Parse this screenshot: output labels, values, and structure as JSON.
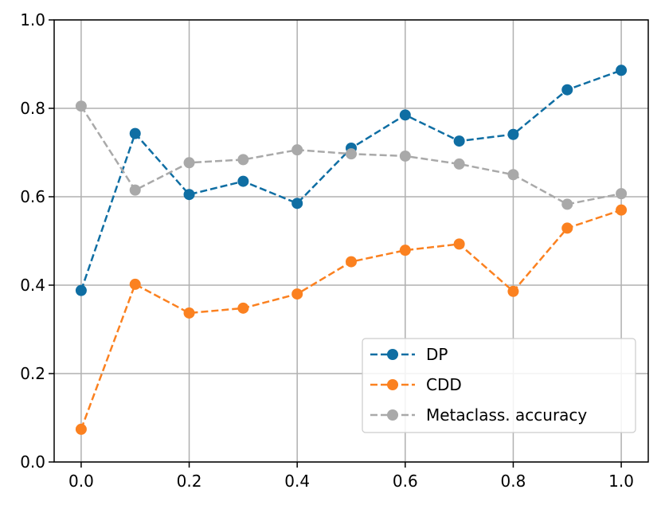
{
  "chart_data": {
    "type": "line",
    "title": "",
    "xlabel": "",
    "ylabel": "",
    "xlim": [
      -0.05,
      1.05
    ],
    "ylim": [
      0.0,
      1.0
    ],
    "x_ticks": [
      0.0,
      0.2,
      0.4,
      0.6,
      0.8,
      1.0
    ],
    "x_tick_labels": [
      "0.0",
      "0.2",
      "0.4",
      "0.6",
      "0.8",
      "1.0"
    ],
    "y_ticks": [
      0.0,
      0.2,
      0.4,
      0.6,
      0.8,
      1.0
    ],
    "y_tick_labels": [
      "0.0",
      "0.2",
      "0.4",
      "0.6",
      "0.8",
      "1.0"
    ],
    "grid": true,
    "legend_position": "lower right",
    "x": [
      0.0,
      0.1,
      0.2,
      0.3,
      0.4,
      0.5,
      0.6,
      0.7,
      0.8,
      0.9,
      1.0
    ],
    "series": [
      {
        "name": "DP",
        "color": "#0f6ea3",
        "line_style": "dashed",
        "marker": "circle",
        "values": [
          0.388,
          0.743,
          0.605,
          0.635,
          0.585,
          0.71,
          0.785,
          0.726,
          0.741,
          0.842,
          0.886
        ]
      },
      {
        "name": "CDD",
        "color": "#fb8120",
        "line_style": "dashed",
        "marker": "circle",
        "values": [
          0.074,
          0.402,
          0.337,
          0.348,
          0.38,
          0.453,
          0.479,
          0.493,
          0.386,
          0.529,
          0.57
        ]
      },
      {
        "name": "Metaclass. accuracy",
        "color": "#a9a9a9",
        "line_style": "dashed",
        "marker": "circle",
        "values": [
          0.805,
          0.615,
          0.677,
          0.684,
          0.706,
          0.697,
          0.692,
          0.674,
          0.65,
          0.583,
          0.607
        ]
      }
    ]
  }
}
